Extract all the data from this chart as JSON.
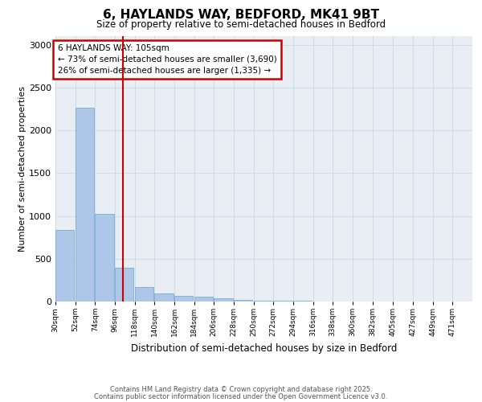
{
  "title_line1": "6, HAYLANDS WAY, BEDFORD, MK41 9BT",
  "title_line2": "Size of property relative to semi-detached houses in Bedford",
  "xlabel": "Distribution of semi-detached houses by size in Bedford",
  "ylabel": "Number of semi-detached properties",
  "annotation_title": "6 HAYLANDS WAY: 105sqm",
  "annotation_line2": "← 73% of semi-detached houses are smaller (3,690)",
  "annotation_line3": "26% of semi-detached houses are larger (1,335) →",
  "property_size": 105,
  "footer_line1": "Contains HM Land Registry data © Crown copyright and database right 2025.",
  "footer_line2": "Contains public sector information licensed under the Open Government Licence v3.0.",
  "bin_labels": [
    "30sqm",
    "52sqm",
    "74sqm",
    "96sqm",
    "118sqm",
    "140sqm",
    "162sqm",
    "184sqm",
    "206sqm",
    "228sqm",
    "250sqm",
    "272sqm",
    "294sqm",
    "316sqm",
    "338sqm",
    "360sqm",
    "382sqm",
    "405sqm",
    "427sqm",
    "449sqm",
    "471sqm"
  ],
  "bin_edges": [
    30,
    52,
    74,
    96,
    118,
    140,
    162,
    184,
    206,
    228,
    250,
    272,
    294,
    316,
    338,
    360,
    382,
    405,
    427,
    449,
    471
  ],
  "bar_heights": [
    840,
    2260,
    1020,
    390,
    165,
    95,
    65,
    55,
    40,
    20,
    12,
    8,
    5,
    3,
    2,
    2,
    1,
    1,
    1,
    1
  ],
  "bar_color": "#aec6e8",
  "bar_edge_color": "#7aafd4",
  "vline_color": "#cc0000",
  "annotation_box_color": "#cc0000",
  "grid_color": "#d0dce8",
  "background_color": "#e8eef4",
  "ylim": [
    0,
    3100
  ],
  "yticks": [
    0,
    500,
    1000,
    1500,
    2000,
    2500,
    3000
  ]
}
